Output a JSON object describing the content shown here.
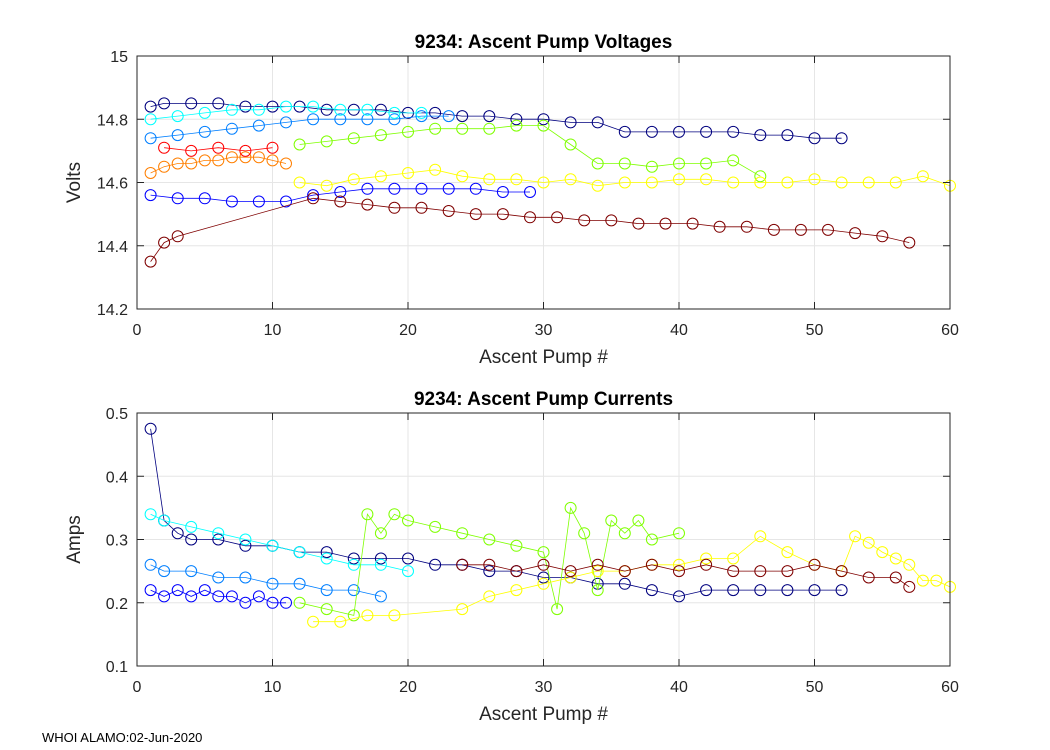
{
  "footer": "WHOI ALAMO:02-Jun-2020",
  "chart_data": [
    {
      "type": "scatter",
      "title": "9234: Ascent Pump Voltages",
      "xlabel": "Ascent Pump #",
      "ylabel": "Volts",
      "xlim": [
        0,
        60
      ],
      "ylim": [
        14.2,
        15
      ],
      "xticks": [
        0,
        10,
        20,
        30,
        40,
        50,
        60
      ],
      "yticks": [
        14.2,
        14.4,
        14.6,
        14.8,
        15
      ],
      "grid": true,
      "marker": "open-circle",
      "colormap": "jet",
      "series": [
        {
          "color": "#00007f",
          "x": [
            1,
            2,
            4,
            6,
            8,
            10,
            12,
            14,
            16,
            18,
            20,
            22,
            24,
            26,
            28,
            30,
            32,
            34,
            36,
            38,
            40,
            42,
            44,
            46,
            48,
            50,
            52
          ],
          "y": [
            14.84,
            14.85,
            14.85,
            14.85,
            14.84,
            14.84,
            14.84,
            14.83,
            14.83,
            14.83,
            14.82,
            14.82,
            14.81,
            14.81,
            14.8,
            14.8,
            14.79,
            14.79,
            14.76,
            14.76,
            14.76,
            14.76,
            14.76,
            14.75,
            14.75,
            14.74,
            14.74
          ]
        },
        {
          "color": "#0000ff",
          "x": [
            1,
            3,
            5,
            7,
            9,
            11,
            13,
            15,
            17,
            19,
            21,
            23,
            25,
            27,
            29
          ],
          "y": [
            14.56,
            14.55,
            14.55,
            14.54,
            14.54,
            14.54,
            14.56,
            14.57,
            14.58,
            14.58,
            14.58,
            14.58,
            14.58,
            14.57,
            14.57
          ]
        },
        {
          "color": "#007fff",
          "x": [
            1,
            3,
            5,
            7,
            9,
            11,
            13,
            15,
            17,
            19,
            21,
            23
          ],
          "y": [
            14.74,
            14.75,
            14.76,
            14.77,
            14.78,
            14.79,
            14.8,
            14.8,
            14.8,
            14.8,
            14.81,
            14.81
          ]
        },
        {
          "color": "#00ffff",
          "x": [
            1,
            3,
            5,
            7,
            9,
            11,
            13,
            15,
            17,
            19,
            21
          ],
          "y": [
            14.8,
            14.81,
            14.82,
            14.83,
            14.83,
            14.84,
            14.84,
            14.83,
            14.83,
            14.82,
            14.82
          ]
        },
        {
          "color": "#7fff00",
          "x": [
            12,
            14,
            16,
            18,
            20,
            22,
            24,
            26,
            28,
            30,
            32,
            34,
            36,
            38,
            40,
            42,
            44,
            46
          ],
          "y": [
            14.72,
            14.73,
            14.74,
            14.75,
            14.76,
            14.77,
            14.77,
            14.77,
            14.78,
            14.78,
            14.72,
            14.66,
            14.66,
            14.65,
            14.66,
            14.66,
            14.67,
            14.62
          ]
        },
        {
          "color": "#ffff00",
          "x": [
            12,
            14,
            16,
            18,
            20,
            22,
            24,
            26,
            28,
            30,
            32,
            34,
            36,
            38,
            40,
            42,
            44,
            46,
            48,
            50,
            52,
            54,
            56,
            58,
            60
          ],
          "y": [
            14.6,
            14.59,
            14.61,
            14.62,
            14.63,
            14.64,
            14.62,
            14.61,
            14.61,
            14.6,
            14.61,
            14.59,
            14.6,
            14.6,
            14.61,
            14.61,
            14.6,
            14.6,
            14.6,
            14.61,
            14.6,
            14.6,
            14.6,
            14.62,
            14.59
          ]
        },
        {
          "color": "#ff7f00",
          "x": [
            1,
            2,
            3,
            4,
            5,
            6,
            7,
            8,
            9,
            10,
            11
          ],
          "y": [
            14.63,
            14.65,
            14.66,
            14.66,
            14.67,
            14.67,
            14.68,
            14.68,
            14.68,
            14.67,
            14.66
          ]
        },
        {
          "color": "#ff0000",
          "x": [
            2,
            4,
            6,
            8,
            10
          ],
          "y": [
            14.71,
            14.7,
            14.71,
            14.7,
            14.71
          ]
        },
        {
          "color": "#7f0000",
          "x": [
            1,
            2,
            3,
            13,
            15,
            17,
            19,
            21,
            23,
            25,
            27,
            29,
            31,
            33,
            35,
            37,
            39,
            41,
            43,
            45,
            47,
            49,
            51,
            53,
            55,
            57
          ],
          "y": [
            14.35,
            14.41,
            14.43,
            14.55,
            14.54,
            14.53,
            14.52,
            14.52,
            14.51,
            14.5,
            14.5,
            14.49,
            14.49,
            14.48,
            14.48,
            14.47,
            14.47,
            14.47,
            14.46,
            14.46,
            14.45,
            14.45,
            14.45,
            14.44,
            14.43,
            14.41
          ]
        }
      ]
    },
    {
      "type": "scatter",
      "title": "9234: Ascent Pump Currents",
      "xlabel": "Ascent Pump #",
      "ylabel": "Amps",
      "xlim": [
        0,
        60
      ],
      "ylim": [
        0.1,
        0.5
      ],
      "xticks": [
        0,
        10,
        20,
        30,
        40,
        50,
        60
      ],
      "yticks": [
        0.1,
        0.2,
        0.3,
        0.4,
        0.5
      ],
      "grid": true,
      "marker": "open-circle",
      "colormap": "jet",
      "series": [
        {
          "color": "#00007f",
          "x": [
            1,
            2,
            3,
            4,
            6,
            8,
            10,
            12,
            14,
            16,
            18,
            20,
            22,
            24,
            26,
            28,
            30,
            32,
            34,
            36,
            38,
            40,
            42,
            44,
            46,
            48,
            50,
            52
          ],
          "y": [
            0.475,
            0.33,
            0.31,
            0.3,
            0.3,
            0.29,
            0.29,
            0.28,
            0.28,
            0.27,
            0.27,
            0.27,
            0.26,
            0.26,
            0.25,
            0.25,
            0.24,
            0.24,
            0.23,
            0.23,
            0.22,
            0.21,
            0.22,
            0.22,
            0.22,
            0.22,
            0.22,
            0.22
          ]
        },
        {
          "color": "#0000ff",
          "x": [
            1,
            2,
            3,
            4,
            5,
            6,
            7,
            8,
            9,
            10,
            11
          ],
          "y": [
            0.22,
            0.21,
            0.22,
            0.21,
            0.22,
            0.21,
            0.21,
            0.2,
            0.21,
            0.2,
            0.2
          ]
        },
        {
          "color": "#007fff",
          "x": [
            1,
            2,
            4,
            6,
            8,
            10,
            12,
            14,
            16,
            18
          ],
          "y": [
            0.26,
            0.25,
            0.25,
            0.24,
            0.24,
            0.23,
            0.23,
            0.22,
            0.22,
            0.21
          ]
        },
        {
          "color": "#00ffff",
          "x": [
            1,
            2,
            4,
            6,
            8,
            10,
            12,
            14,
            16,
            18,
            20
          ],
          "y": [
            0.34,
            0.33,
            0.32,
            0.31,
            0.3,
            0.29,
            0.28,
            0.27,
            0.26,
            0.26,
            0.25
          ]
        },
        {
          "color": "#7fff00",
          "x": [
            12,
            14,
            16,
            17,
            18,
            19,
            20,
            22,
            24,
            26,
            28,
            30,
            31,
            32,
            33,
            34,
            35,
            36,
            37,
            38,
            40
          ],
          "y": [
            0.2,
            0.19,
            0.18,
            0.34,
            0.31,
            0.34,
            0.33,
            0.32,
            0.31,
            0.3,
            0.29,
            0.28,
            0.19,
            0.35,
            0.31,
            0.22,
            0.33,
            0.31,
            0.33,
            0.3,
            0.31
          ]
        },
        {
          "color": "#ffff00",
          "x": [
            13,
            15,
            17,
            19,
            24,
            26,
            28,
            30,
            32,
            34,
            36,
            38,
            40,
            42,
            44,
            46,
            48,
            50,
            52,
            53,
            54,
            55,
            56,
            57,
            58,
            59,
            60
          ],
          "y": [
            0.17,
            0.17,
            0.18,
            0.18,
            0.19,
            0.21,
            0.22,
            0.23,
            0.24,
            0.25,
            0.25,
            0.26,
            0.26,
            0.27,
            0.27,
            0.305,
            0.28,
            0.26,
            0.25,
            0.305,
            0.295,
            0.28,
            0.27,
            0.26,
            0.235,
            0.235,
            0.225
          ]
        },
        {
          "color": "#7f0000",
          "x": [
            24,
            26,
            28,
            30,
            32,
            34,
            36,
            38,
            40,
            42,
            44,
            46,
            48,
            50,
            52,
            54,
            56,
            57
          ],
          "y": [
            0.26,
            0.26,
            0.25,
            0.26,
            0.25,
            0.26,
            0.25,
            0.26,
            0.25,
            0.26,
            0.25,
            0.25,
            0.25,
            0.26,
            0.25,
            0.24,
            0.24,
            0.225
          ]
        }
      ]
    }
  ]
}
